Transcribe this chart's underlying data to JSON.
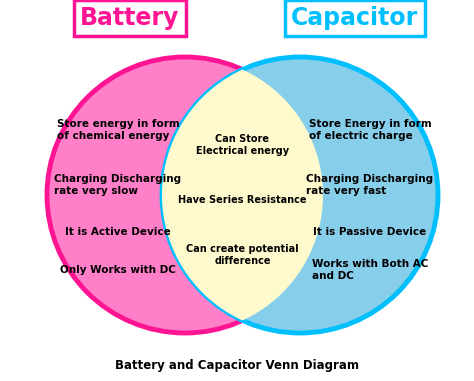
{
  "title_battery": "Battery",
  "title_capacitor": "Capacitor",
  "caption": "Battery and Capacitor Venn Diagram",
  "battery_border_color": "#FF1493",
  "battery_fill": "#FF80C8",
  "capacitor_border_color": "#00BFFF",
  "capacitor_fill": "#87CEEB",
  "overlap_fill": "#FFFACD",
  "battery_label_color": "#FF1493",
  "capacitor_label_color": "#00BFFF",
  "battery_items": [
    "Store energy in form\nof chemical energy",
    "Charging Discharging\nrate very slow",
    "It is Active Device",
    "Only Works with DC"
  ],
  "capacitor_items": [
    "Store Energy in form\nof electric charge",
    "Charging Discharging\nrate very fast",
    "It is Passive Device",
    "Works with Both AC\nand DC"
  ],
  "common_items": [
    "Can Store\nElectrical energy",
    "Have Series Resistance",
    "Can create potential\ndifference"
  ],
  "fig_width": 4.74,
  "fig_height": 3.81,
  "dpi": 100
}
